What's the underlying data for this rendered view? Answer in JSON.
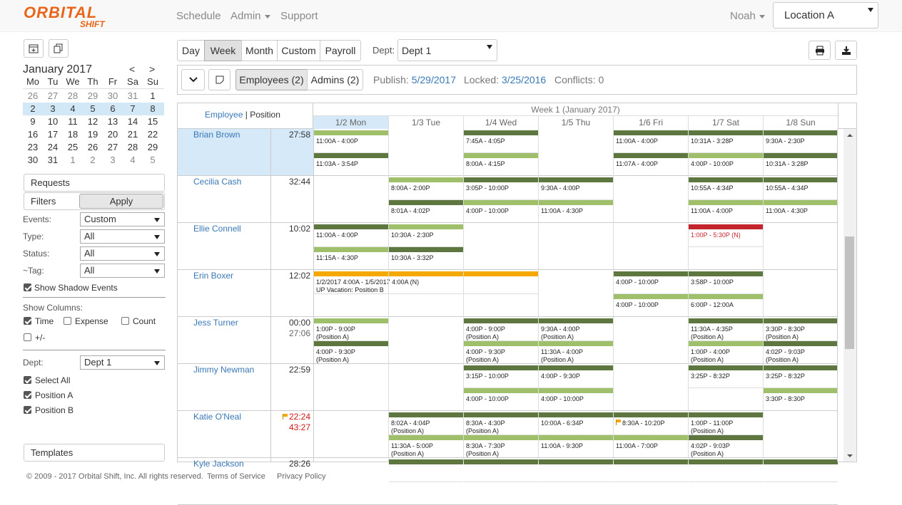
{
  "header": {
    "logo_top": "ORBITAL",
    "logo_bottom": "SHIFT",
    "nav": [
      "Schedule",
      "Admin",
      "Support"
    ],
    "user": "Noah",
    "location": "Location A"
  },
  "calendar": {
    "title": "January 2017",
    "prev": "<",
    "next": ">",
    "weekdays": [
      "Mo",
      "Tu",
      "We",
      "Th",
      "Fr",
      "Sa",
      "Su"
    ],
    "weeks": [
      [
        26,
        27,
        28,
        29,
        30,
        31,
        1
      ],
      [
        2,
        3,
        4,
        5,
        6,
        7,
        8
      ],
      [
        9,
        10,
        11,
        12,
        13,
        14,
        15
      ],
      [
        16,
        17,
        18,
        19,
        20,
        21,
        22
      ],
      [
        23,
        24,
        25,
        26,
        27,
        28,
        29
      ],
      [
        30,
        31,
        1,
        2,
        3,
        4,
        5
      ]
    ],
    "selected_week": 1
  },
  "sidebar": {
    "requests": "Requests",
    "filters": "Filters",
    "apply": "Apply",
    "filter_rows": [
      {
        "label": "Events:",
        "value": "Custom"
      },
      {
        "label": "Type:",
        "value": "All"
      },
      {
        "label": "Status:",
        "value": "All"
      },
      {
        "label": "~Tag:",
        "value": "All"
      }
    ],
    "shadow": {
      "label": "Show Shadow Events",
      "checked": true
    },
    "columns_label": "Show Columns:",
    "columns": [
      {
        "label": "Time",
        "checked": true
      },
      {
        "label": "Expense",
        "checked": false
      },
      {
        "label": "Count",
        "checked": false
      },
      {
        "label": "+/-",
        "checked": false
      }
    ],
    "dept_label": "Dept:",
    "dept": "Dept 1",
    "positions": [
      {
        "label": "Select All",
        "checked": true
      },
      {
        "label": "Position A",
        "checked": true
      },
      {
        "label": "Position B",
        "checked": true
      }
    ],
    "templates": "Templates"
  },
  "toolbar": {
    "views": [
      "Day",
      "Week",
      "Month",
      "Custom",
      "Payroll"
    ],
    "dept_label": "Dept:",
    "dept": "Dept 1",
    "tabs": [
      "Employees (2)",
      "Admins (2)"
    ],
    "publish_label": "Publish:",
    "publish": "5/29/2017",
    "locked_label": "Locked:",
    "locked": "3/25/2016",
    "conflicts": "Conflicts: 0"
  },
  "schedule": {
    "employee_header": "Employee",
    "separator": "|",
    "position_header": "Position",
    "week_title": "Week 1 (January 2017)",
    "days": [
      "1/2 Mon",
      "1/3 Tue",
      "1/4 Wed",
      "1/5 Thu",
      "1/6 Fri",
      "1/7 Sat",
      "1/8 Sun"
    ],
    "colors": {
      "light": "#9fbf6a",
      "dark": "#5e7741",
      "red": "#c4252c",
      "orange": "#f5a800"
    },
    "employees": [
      {
        "name": "Brian Brown",
        "times": [
          "27:58"
        ],
        "selected": true,
        "cells": [
          [
            {
              "time": "11:00A - 4:00P",
              "bar": "light"
            },
            {
              "time": "11:03A - 3:54P",
              "bar": "dark"
            }
          ],
          [],
          [
            {
              "time": "7:45A - 4:05P",
              "bar": "dark"
            },
            {
              "time": "8:00A - 4:15P",
              "bar": "light"
            }
          ],
          [],
          [
            {
              "time": "11:00A - 4:00P",
              "bar": "dark"
            },
            {
              "time": "11:07A - 4:00P",
              "bar": "dark"
            }
          ],
          [
            {
              "time": "10:31A - 3:28P",
              "bar": "dark"
            },
            {
              "time": "4:00P - 10:00P",
              "bar": "light"
            }
          ],
          [
            {
              "time": "9:30A - 2:30P",
              "bar": "dark"
            },
            {
              "time": "10:31A - 3:28P",
              "bar": "dark"
            }
          ]
        ]
      },
      {
        "name": "Cecilia Cash",
        "times": [
          "32:44"
        ],
        "cells": [
          [],
          [
            {
              "time": "8:00A - 2:00P",
              "bar": "light"
            },
            {
              "time": "8:01A - 4:02P",
              "bar": "dark"
            }
          ],
          [
            {
              "time": "3:05P - 10:00P",
              "bar": "dark"
            },
            {
              "time": "4:00P - 10:00P",
              "bar": "light"
            }
          ],
          [
            {
              "time": "9:30A - 4:00P",
              "bar": "dark"
            },
            {
              "time": "11:00A - 4:30P",
              "bar": "light"
            }
          ],
          [],
          [
            {
              "time": "10:55A - 4:34P",
              "bar": "dark"
            },
            {
              "time": "11:00A - 4:00P",
              "bar": "light"
            }
          ],
          [
            {
              "time": "10:55A - 4:34P",
              "bar": "dark"
            },
            {
              "time": "11:00A - 4:30P",
              "bar": "light"
            }
          ]
        ]
      },
      {
        "name": "Ellie Connell",
        "times": [
          "10:02"
        ],
        "cells": [
          [
            {
              "time": "11:00A - 4:00P",
              "bar": "dark"
            },
            {
              "time": "11:15A - 4:30P",
              "bar": "light"
            }
          ],
          [
            {
              "time": "10:30A - 2:30P",
              "bar": "light"
            },
            {
              "time": "10:30A - 3:32P",
              "bar": "dark"
            }
          ],
          [],
          [],
          [],
          [
            {
              "time": "1:00P - 5:30P (N)",
              "bar": "red",
              "alert": true
            }
          ],
          []
        ]
      },
      {
        "name": "Erin Boxer",
        "times": [
          "12:02"
        ],
        "cells": [
          [
            {
              "time": "1/2/2017 4:00A - 1/5/2017 4:00A (N)",
              "note": "UP Vacation: Position B",
              "bar": "orange",
              "span": 3
            }
          ],
          [],
          [],
          [],
          [
            {
              "time": "4:00P - 10:00P",
              "bar": "dark"
            },
            {
              "time": "4:00P - 10:00P",
              "bar": "light"
            }
          ],
          [
            {
              "time": "3:58P - 10:00P",
              "bar": "dark"
            },
            {
              "time": "6:00P - 12:00A",
              "bar": "light"
            }
          ],
          []
        ]
      },
      {
        "name": "Jess Turner",
        "times": [
          "00:00",
          "27:06"
        ],
        "cells": [
          [
            {
              "time": "1:00P - 9:00P",
              "note": "(Position A)",
              "bar": "light"
            },
            {
              "time": "4:00P - 9:30P",
              "note": "(Position A)",
              "bar": "dark"
            }
          ],
          [],
          [
            {
              "time": "4:00P - 9:00P",
              "note": "(Position A)",
              "bar": "dark"
            },
            {
              "time": "4:00P - 9:30P",
              "note": "(Position A)",
              "bar": "light"
            }
          ],
          [
            {
              "time": "9:30A - 4:00P",
              "note": "(Position A)",
              "bar": "dark"
            },
            {
              "time": "11:30A - 4:00P",
              "note": "(Position A)",
              "bar": "light"
            }
          ],
          [],
          [
            {
              "time": "11:30A - 4:35P",
              "note": "(Position A)",
              "bar": "dark"
            },
            {
              "time": "1:00P - 4:00P",
              "note": "(Position A)",
              "bar": "light"
            }
          ],
          [
            {
              "time": "3:30P - 8:30P",
              "note": "(Position A)",
              "bar": "dark"
            },
            {
              "time": "4:02P - 9:03P",
              "note": "(Position A)",
              "bar": "dark"
            }
          ]
        ]
      },
      {
        "name": "Jimmy Newman",
        "times": [
          "22:59"
        ],
        "cells": [
          [],
          [],
          [
            {
              "time": "3:15P - 10:00P",
              "bar": "dark"
            },
            {
              "time": "4:00P - 10:00P",
              "bar": "light"
            }
          ],
          [
            {
              "time": "4:00P - 9:30P",
              "bar": "dark"
            },
            {
              "time": "4:00P - 10:00P",
              "bar": "light"
            }
          ],
          [],
          [
            {
              "time": "3:25P - 8:32P",
              "bar": "dark"
            }
          ],
          [
            {
              "time": "3:25P - 8:32P",
              "bar": "dark"
            },
            {
              "time": "3:30P - 8:30P",
              "bar": "light"
            }
          ]
        ]
      },
      {
        "name": "Katie O'Neal",
        "times": [
          "22:24",
          "43:27"
        ],
        "alert": true,
        "cells": [
          [],
          [
            {
              "time": "8:02A - 4:04P",
              "note": "(Position A)",
              "bar": "dark"
            },
            {
              "time": "11:30A - 5:00P",
              "note": "(Position A)",
              "bar": "light"
            }
          ],
          [
            {
              "time": "8:30A - 4:30P",
              "note": "(Position A)",
              "bar": "dark"
            },
            {
              "time": "8:30A - 7:30P",
              "note": "(Position A)",
              "bar": "light"
            }
          ],
          [
            {
              "time": "10:00A - 6:34P",
              "bar": "dark"
            },
            {
              "time": "11:00A - 9:30P",
              "bar": "light"
            }
          ],
          [
            {
              "time": "8:30A - 10:20P",
              "bar": "dark",
              "flag": true
            },
            {
              "time": "11:00A - 7:00P",
              "bar": "light"
            }
          ],
          [
            {
              "time": "1:00P - 11:00P",
              "note": "(Position A)",
              "bar": "dark"
            },
            {
              "time": "4:02P - 9:03P",
              "note": "(Position A)",
              "bar": "dark"
            }
          ],
          []
        ]
      },
      {
        "name": "Kyle Jackson",
        "times": [
          "28:26"
        ],
        "cells": [
          [],
          [
            {
              "time": "",
              "bar": "dark"
            }
          ],
          [
            {
              "time": "",
              "bar": "dark"
            }
          ],
          [
            {
              "time": "",
              "bar": "dark"
            }
          ],
          [
            {
              "time": "",
              "bar": "dark"
            }
          ],
          [
            {
              "time": "",
              "bar": "dark"
            }
          ],
          [
            {
              "time": "",
              "bar": "dark"
            }
          ]
        ]
      }
    ]
  },
  "footer": {
    "copyright": "© 2009 - 2017 Orbital Shift, Inc. All rights reserved.",
    "terms": "Terms of Service",
    "privacy": "Privacy Policy"
  }
}
